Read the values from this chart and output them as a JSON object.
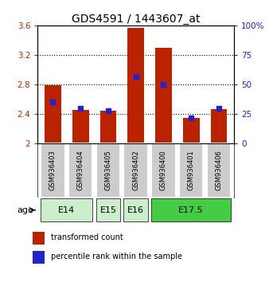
{
  "title": "GDS4591 / 1443607_at",
  "samples": [
    "GSM936403",
    "GSM936404",
    "GSM936405",
    "GSM936402",
    "GSM936400",
    "GSM936401",
    "GSM936406"
  ],
  "transformed_counts": [
    2.79,
    2.46,
    2.44,
    3.57,
    3.3,
    2.35,
    2.47
  ],
  "percentile_ranks": [
    35,
    30,
    28,
    57,
    50,
    22,
    30
  ],
  "ylim_left": [
    2.0,
    3.6
  ],
  "ylim_right": [
    0,
    100
  ],
  "yticks_left": [
    2.0,
    2.4,
    2.8,
    3.2,
    3.6
  ],
  "yticks_right": [
    0,
    25,
    50,
    75,
    100
  ],
  "ytick_labels_left": [
    "2",
    "2.4",
    "2.8",
    "3.2",
    "3.6"
  ],
  "ytick_labels_right": [
    "0",
    "25",
    "50",
    "75",
    "100%"
  ],
  "bar_color": "#bb2200",
  "dot_color": "#2222cc",
  "bar_width": 0.6,
  "age_groups": [
    {
      "label": "E14",
      "samples": [
        "GSM936403",
        "GSM936404"
      ],
      "color": "#cceecc"
    },
    {
      "label": "E15",
      "samples": [
        "GSM936405"
      ],
      "color": "#cceecc"
    },
    {
      "label": "E16",
      "samples": [
        "GSM936402"
      ],
      "color": "#cceecc"
    },
    {
      "label": "E17.5",
      "samples": [
        "GSM936400",
        "GSM936401",
        "GSM936406"
      ],
      "color": "#44cc44"
    }
  ],
  "age_label": "age",
  "legend_items": [
    {
      "label": "transformed count",
      "color": "#bb2200"
    },
    {
      "label": "percentile rank within the sample",
      "color": "#2222cc"
    }
  ],
  "grid_style": "dotted",
  "grid_color": "#000000",
  "sample_box_color": "#cccccc",
  "ylabel_left_color": "#cc2200",
  "ylabel_right_color": "#2222cc",
  "title_fontsize": 10,
  "tick_fontsize": 7.5,
  "sample_fontsize": 6,
  "legend_fontsize": 7,
  "age_fontsize": 8
}
